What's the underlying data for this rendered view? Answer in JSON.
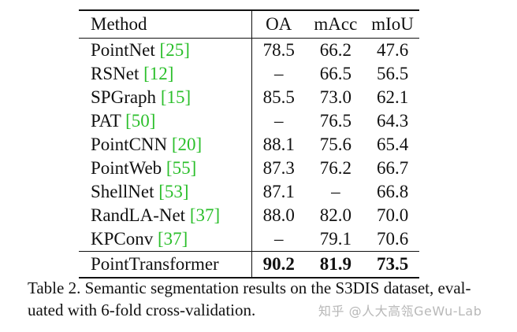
{
  "table": {
    "headers": {
      "method": "Method",
      "oa": "OA",
      "macc": "mAcc",
      "miou": "mIoU"
    },
    "rows": [
      {
        "method": "PointNet",
        "cite": "[25]",
        "oa": "78.5",
        "macc": "66.2",
        "miou": "47.6"
      },
      {
        "method": "RSNet",
        "cite": "[12]",
        "oa": "–",
        "macc": "66.5",
        "miou": "56.5"
      },
      {
        "method": "SPGraph",
        "cite": "[15]",
        "oa": "85.5",
        "macc": "73.0",
        "miou": "62.1"
      },
      {
        "method": "PAT",
        "cite": "[50]",
        "oa": "–",
        "macc": "76.5",
        "miou": "64.3"
      },
      {
        "method": "PointCNN",
        "cite": "[20]",
        "oa": "88.1",
        "macc": "75.6",
        "miou": "65.4"
      },
      {
        "method": "PointWeb",
        "cite": "[55]",
        "oa": "87.3",
        "macc": "76.2",
        "miou": "66.7"
      },
      {
        "method": "ShellNet",
        "cite": "[53]",
        "oa": "87.1",
        "macc": "–",
        "miou": "66.8"
      },
      {
        "method": "RandLA-Net",
        "cite": "[37]",
        "oa": "88.0",
        "macc": "82.0",
        "miou": "70.0"
      },
      {
        "method": "KPConv",
        "cite": "[37]",
        "oa": "–",
        "macc": "79.1",
        "miou": "70.6"
      }
    ],
    "final_row": {
      "method": "PointTransformer",
      "oa": "90.2",
      "macc": "81.9",
      "miou": "73.5"
    }
  },
  "caption": {
    "line1": "Table 2. Semantic segmentation results on the S3DIS dataset, eval-",
    "line2": "uated with 6-fold cross-validation."
  },
  "watermark": "知乎 @人大高瓴GeWu-Lab",
  "colors": {
    "citation": "#2bbf2b",
    "text": "#111111",
    "watermark": "#b8b8b8"
  }
}
